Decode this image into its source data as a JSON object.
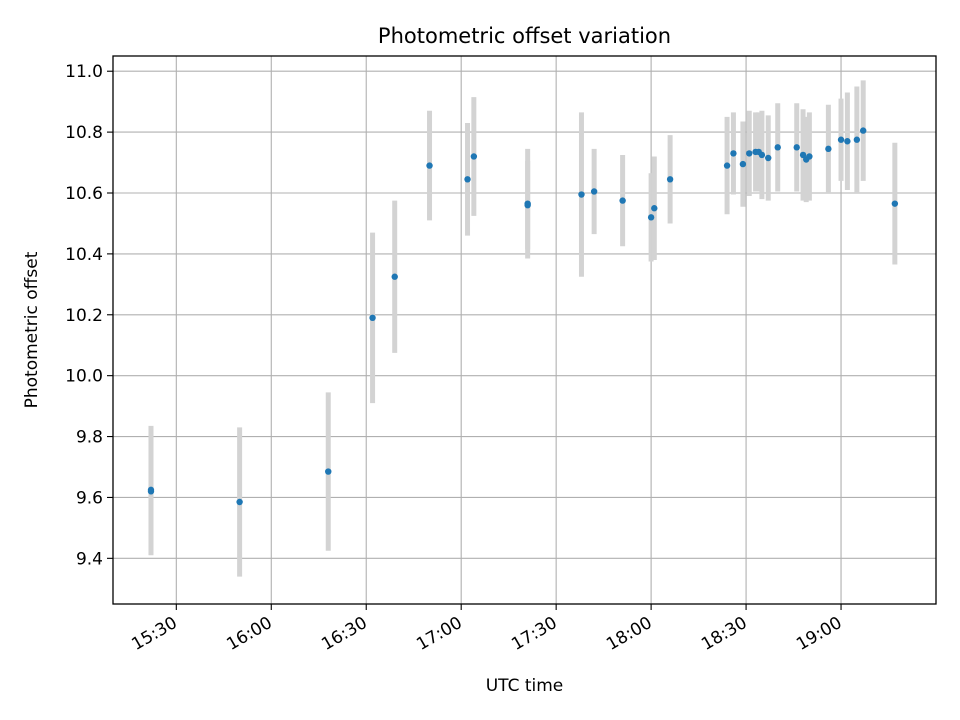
{
  "chart_data": {
    "type": "scatter",
    "title": "Photometric offset variation",
    "xlabel": "UTC time",
    "ylabel": "Photometric offset",
    "xlim": [
      "15:10",
      "19:30"
    ],
    "ylim": [
      9.25,
      11.05
    ],
    "grid": true,
    "x_ticks": [
      "15:30",
      "16:00",
      "16:30",
      "17:00",
      "17:30",
      "18:00",
      "18:30",
      "19:00"
    ],
    "y_ticks": [
      9.4,
      9.6,
      9.8,
      10.0,
      10.2,
      10.4,
      10.6,
      10.8,
      11.0
    ],
    "marker_color": "#1f77b4",
    "errorbar_color": "#d3d3d3",
    "points": [
      {
        "x": "15:22",
        "y": 9.625,
        "err": 0.21
      },
      {
        "x": "15:22",
        "y": 9.62,
        "err": 0.21
      },
      {
        "x": "15:50",
        "y": 9.585,
        "err": 0.245
      },
      {
        "x": "16:18",
        "y": 9.685,
        "err": 0.26
      },
      {
        "x": "16:32",
        "y": 10.19,
        "err": 0.28
      },
      {
        "x": "16:39",
        "y": 10.325,
        "err": 0.25
      },
      {
        "x": "16:50",
        "y": 10.69,
        "err": 0.18
      },
      {
        "x": "17:02",
        "y": 10.645,
        "err": 0.185
      },
      {
        "x": "17:04",
        "y": 10.72,
        "err": 0.195
      },
      {
        "x": "17:21",
        "y": 10.56,
        "err": 0.145
      },
      {
        "x": "17:21",
        "y": 10.565,
        "err": 0.18
      },
      {
        "x": "17:38",
        "y": 10.595,
        "err": 0.27
      },
      {
        "x": "17:42",
        "y": 10.605,
        "err": 0.14
      },
      {
        "x": "17:51",
        "y": 10.575,
        "err": 0.15
      },
      {
        "x": "18:00",
        "y": 10.52,
        "err": 0.145
      },
      {
        "x": "18:01",
        "y": 10.55,
        "err": 0.17
      },
      {
        "x": "18:06",
        "y": 10.645,
        "err": 0.145
      },
      {
        "x": "18:24",
        "y": 10.69,
        "err": 0.16
      },
      {
        "x": "18:26",
        "y": 10.73,
        "err": 0.135
      },
      {
        "x": "18:29",
        "y": 10.695,
        "err": 0.14
      },
      {
        "x": "18:31",
        "y": 10.73,
        "err": 0.14
      },
      {
        "x": "18:33",
        "y": 10.735,
        "err": 0.13
      },
      {
        "x": "18:34",
        "y": 10.735,
        "err": 0.13
      },
      {
        "x": "18:35",
        "y": 10.725,
        "err": 0.145
      },
      {
        "x": "18:37",
        "y": 10.715,
        "err": 0.14
      },
      {
        "x": "18:40",
        "y": 10.75,
        "err": 0.145
      },
      {
        "x": "18:46",
        "y": 10.75,
        "err": 0.145
      },
      {
        "x": "18:48",
        "y": 10.725,
        "err": 0.15
      },
      {
        "x": "18:49",
        "y": 10.71,
        "err": 0.14
      },
      {
        "x": "18:50",
        "y": 10.72,
        "err": 0.145
      },
      {
        "x": "18:56",
        "y": 10.745,
        "err": 0.145
      },
      {
        "x": "19:00",
        "y": 10.775,
        "err": 0.135
      },
      {
        "x": "19:02",
        "y": 10.77,
        "err": 0.16
      },
      {
        "x": "19:05",
        "y": 10.775,
        "err": 0.175
      },
      {
        "x": "19:07",
        "y": 10.805,
        "err": 0.165
      },
      {
        "x": "19:17",
        "y": 10.565,
        "err": 0.2
      }
    ]
  }
}
